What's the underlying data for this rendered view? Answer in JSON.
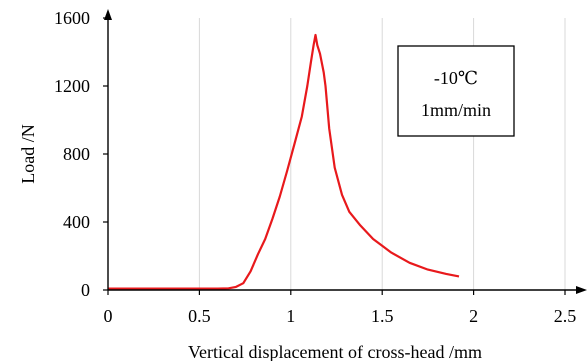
{
  "chart_data": {
    "type": "line",
    "xlabel": "Vertical displacement  of cross-head /mm",
    "ylabel": "Load /N",
    "xlim": [
      0,
      2.5
    ],
    "ylim": [
      0,
      1600
    ],
    "x_ticks": [
      "0",
      "0.5",
      "1",
      "1.5",
      "2",
      "2.5"
    ],
    "y_ticks": [
      "0",
      "400",
      "800",
      "1200",
      "1600"
    ],
    "grid": "vertical",
    "annotation_box": {
      "lines": [
        "-10℃",
        "1mm/min"
      ]
    },
    "series": [
      {
        "color": "#e8191c",
        "points": [
          [
            0,
            8
          ],
          [
            0.6,
            8
          ],
          [
            0.66,
            10
          ],
          [
            0.7,
            18
          ],
          [
            0.74,
            40
          ],
          [
            0.78,
            110
          ],
          [
            0.82,
            210
          ],
          [
            0.86,
            300
          ],
          [
            0.9,
            420
          ],
          [
            0.94,
            550
          ],
          [
            0.98,
            700
          ],
          [
            1.02,
            860
          ],
          [
            1.06,
            1020
          ],
          [
            1.09,
            1200
          ],
          [
            1.11,
            1340
          ],
          [
            1.125,
            1440
          ],
          [
            1.135,
            1500
          ],
          [
            1.145,
            1440
          ],
          [
            1.16,
            1390
          ],
          [
            1.18,
            1280
          ],
          [
            1.19,
            1200
          ],
          [
            1.21,
            950
          ],
          [
            1.24,
            720
          ],
          [
            1.28,
            560
          ],
          [
            1.32,
            460
          ],
          [
            1.38,
            380
          ],
          [
            1.45,
            300
          ],
          [
            1.55,
            220
          ],
          [
            1.65,
            160
          ],
          [
            1.75,
            120
          ],
          [
            1.85,
            95
          ],
          [
            1.92,
            80
          ]
        ]
      }
    ]
  },
  "colors": {
    "series": "#e8191c",
    "axis": "#000000",
    "grid": "#d9d9d9"
  }
}
